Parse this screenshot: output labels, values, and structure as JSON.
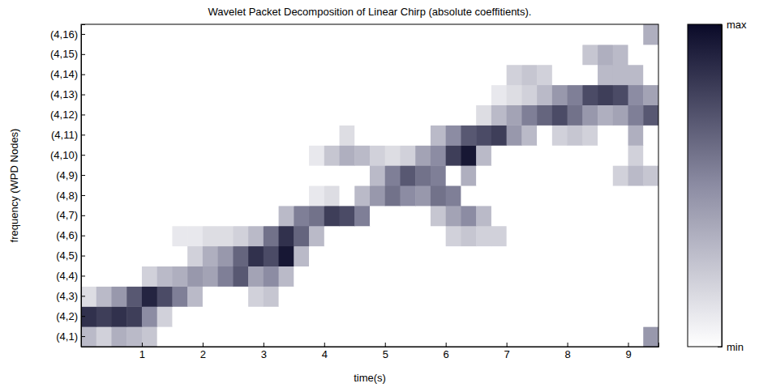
{
  "chart_data": {
    "type": "heatmap",
    "title": "Wavelet Packet Decomposition of Linear Chirp (absolute coeffitients).",
    "x_label": "time(s)",
    "y_label": "frequency (WPD Nodes)",
    "categories": [
      "(4,1)",
      "(4,2)",
      "(4,3)",
      "(4,4)",
      "(4,5)",
      "(4,6)",
      "(4,7)",
      "(4,8)",
      "(4,9)",
      "(4,10)",
      "(4,11)",
      "(4,12)",
      "(4,13)",
      "(4,14)",
      "(4,15)",
      "(4,16)"
    ],
    "x": [
      0.125,
      0.375,
      0.625,
      0.875,
      1.125,
      1.375,
      1.625,
      1.875,
      2.125,
      2.375,
      2.625,
      2.875,
      3.125,
      3.375,
      3.625,
      3.875,
      4.125,
      4.375,
      4.625,
      4.875,
      5.125,
      5.375,
      5.625,
      5.875,
      6.125,
      6.375,
      6.625,
      6.875,
      7.125,
      7.375,
      7.625,
      7.875,
      8.125,
      8.375,
      8.625,
      8.875,
      9.125,
      9.375
    ],
    "xlim": [
      0,
      9.5
    ],
    "xticks": [
      1,
      2,
      3,
      4,
      5,
      6,
      7,
      8,
      9
    ],
    "z": [
      [
        0.3,
        0.2,
        0.35,
        0.3,
        0.25,
        0,
        0,
        0,
        0,
        0,
        0,
        0,
        0,
        0,
        0,
        0,
        0,
        0,
        0,
        0,
        0,
        0,
        0,
        0,
        0,
        0,
        0,
        0,
        0,
        0,
        0,
        0,
        0,
        0,
        0,
        0,
        0,
        0.45
      ],
      [
        0.85,
        0.8,
        0.85,
        0.8,
        0.5,
        0.2,
        0,
        0,
        0,
        0,
        0,
        0,
        0,
        0,
        0,
        0,
        0,
        0,
        0,
        0,
        0,
        0,
        0,
        0,
        0,
        0,
        0,
        0,
        0,
        0,
        0,
        0,
        0,
        0,
        0,
        0,
        0,
        0
      ],
      [
        0.15,
        0.3,
        0.45,
        0.7,
        0.9,
        0.75,
        0.55,
        0.3,
        0,
        0,
        0,
        0.2,
        0.25,
        0,
        0,
        0,
        0,
        0,
        0,
        0,
        0,
        0,
        0,
        0,
        0,
        0,
        0,
        0,
        0,
        0,
        0,
        0,
        0,
        0,
        0,
        0,
        0,
        0
      ],
      [
        0,
        0,
        0,
        0,
        0.2,
        0.3,
        0.35,
        0.45,
        0.4,
        0.55,
        0.7,
        0.4,
        0.5,
        0.3,
        0,
        0,
        0,
        0,
        0,
        0,
        0,
        0,
        0,
        0,
        0,
        0,
        0,
        0,
        0,
        0,
        0,
        0,
        0,
        0,
        0,
        0,
        0,
        0
      ],
      [
        0,
        0,
        0,
        0,
        0,
        0,
        0,
        0.2,
        0.35,
        0.45,
        0.65,
        0.85,
        0.75,
        0.95,
        0.3,
        0,
        0,
        0,
        0,
        0,
        0,
        0,
        0,
        0,
        0,
        0,
        0,
        0,
        0,
        0,
        0,
        0,
        0,
        0,
        0,
        0,
        0,
        0
      ],
      [
        0,
        0,
        0,
        0,
        0,
        0,
        0.1,
        0.1,
        0.15,
        0.15,
        0.2,
        0.3,
        0.6,
        0.85,
        0.65,
        0.3,
        0,
        0,
        0,
        0,
        0,
        0,
        0,
        0,
        0.2,
        0.25,
        0.2,
        0.2,
        0,
        0,
        0,
        0,
        0,
        0,
        0,
        0,
        0,
        0
      ],
      [
        0,
        0,
        0,
        0,
        0,
        0,
        0,
        0,
        0,
        0,
        0,
        0,
        0,
        0.3,
        0.55,
        0.6,
        0.8,
        0.75,
        0.55,
        0,
        0,
        0,
        0,
        0.25,
        0.4,
        0.5,
        0.3,
        0,
        0,
        0,
        0,
        0,
        0,
        0,
        0,
        0,
        0,
        0
      ],
      [
        0,
        0,
        0,
        0,
        0,
        0,
        0,
        0,
        0,
        0,
        0,
        0,
        0,
        0,
        0,
        0.1,
        0.15,
        0,
        0.3,
        0.45,
        0.6,
        0.5,
        0.45,
        0.6,
        0.55,
        0,
        0,
        0,
        0,
        0,
        0,
        0,
        0,
        0,
        0,
        0,
        0,
        0
      ],
      [
        0,
        0,
        0,
        0,
        0,
        0,
        0,
        0,
        0,
        0,
        0,
        0,
        0,
        0,
        0,
        0,
        0,
        0,
        0,
        0.3,
        0.55,
        0.7,
        0.6,
        0.55,
        0,
        0.35,
        0,
        0,
        0,
        0,
        0,
        0,
        0,
        0,
        0,
        0.2,
        0.3,
        0.25
      ],
      [
        0,
        0,
        0,
        0,
        0,
        0,
        0,
        0,
        0,
        0,
        0,
        0,
        0,
        0,
        0,
        0.1,
        0.25,
        0.35,
        0.3,
        0.2,
        0.15,
        0.2,
        0.4,
        0.5,
        0.8,
        0.95,
        0.3,
        0,
        0,
        0,
        0,
        0,
        0,
        0,
        0,
        0,
        0.2,
        0
      ],
      [
        0,
        0,
        0,
        0,
        0,
        0,
        0,
        0,
        0,
        0,
        0,
        0,
        0,
        0,
        0,
        0,
        0,
        0.15,
        0,
        0,
        0,
        0,
        0,
        0.3,
        0.5,
        0.7,
        0.75,
        0.8,
        0.45,
        0.3,
        0,
        0.2,
        0.25,
        0.2,
        0,
        0,
        0.35,
        0
      ],
      [
        0,
        0,
        0,
        0,
        0,
        0,
        0,
        0,
        0,
        0,
        0,
        0,
        0,
        0,
        0,
        0,
        0,
        0,
        0,
        0,
        0,
        0,
        0,
        0,
        0,
        0,
        0.15,
        0.3,
        0.4,
        0.55,
        0.65,
        0.75,
        0.6,
        0.45,
        0.35,
        0.4,
        0.55,
        0.7
      ],
      [
        0,
        0,
        0,
        0,
        0,
        0,
        0,
        0,
        0,
        0,
        0,
        0,
        0,
        0,
        0,
        0,
        0,
        0,
        0,
        0,
        0,
        0,
        0,
        0,
        0,
        0,
        0,
        0.1,
        0.15,
        0.2,
        0.3,
        0.45,
        0.55,
        0.75,
        0.8,
        0.75,
        0.5,
        0.4
      ],
      [
        0,
        0,
        0,
        0,
        0,
        0,
        0,
        0,
        0,
        0,
        0,
        0,
        0,
        0,
        0,
        0,
        0,
        0,
        0,
        0,
        0,
        0,
        0,
        0,
        0,
        0,
        0,
        0,
        0.2,
        0.25,
        0.2,
        0,
        0,
        0,
        0.3,
        0.3,
        0.3,
        0
      ],
      [
        0,
        0,
        0,
        0,
        0,
        0,
        0,
        0,
        0,
        0,
        0,
        0,
        0,
        0,
        0,
        0,
        0,
        0,
        0,
        0,
        0,
        0,
        0,
        0,
        0,
        0,
        0,
        0,
        0,
        0,
        0,
        0,
        0,
        0.25,
        0.35,
        0.3,
        0,
        0
      ],
      [
        0,
        0,
        0,
        0,
        0,
        0,
        0,
        0,
        0,
        0,
        0,
        0,
        0,
        0,
        0,
        0,
        0,
        0,
        0,
        0,
        0,
        0,
        0,
        0,
        0,
        0,
        0,
        0,
        0,
        0,
        0,
        0,
        0,
        0,
        0,
        0,
        0,
        0.35
      ]
    ],
    "colorbar": {
      "range": [
        0,
        1
      ],
      "ticks": [
        {
          "value": 0,
          "label": "min"
        },
        {
          "value": 1,
          "label": "max"
        }
      ]
    }
  }
}
